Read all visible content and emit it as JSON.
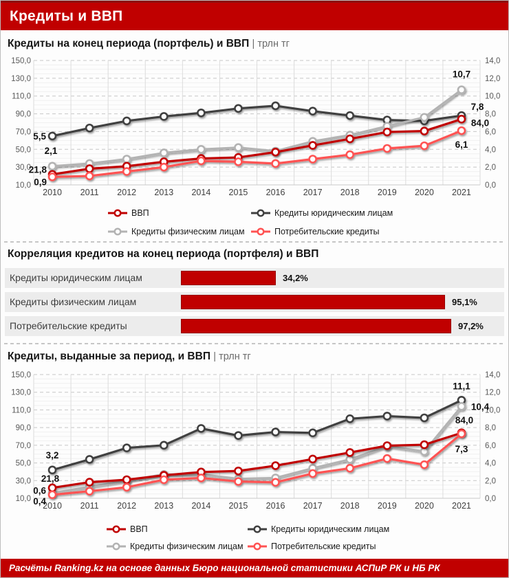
{
  "header": {
    "title": "Кредиты и ВВП"
  },
  "footer": {
    "text": "Расчёты Ranking.kz на основе данных Бюро национальной статистики АСПиР РК и НБ РК"
  },
  "colors": {
    "accent_red": "#c00000",
    "corporate_line": "#404040",
    "retail_line": "#b3b3b3",
    "consumer_line": "#ff5252",
    "row_stripe": "#ececec"
  },
  "chart_data": [
    {
      "type": "line",
      "title": "Кредиты на конец периода (портфель) и ВВП",
      "units": "| трлн тг",
      "x": [
        "2010",
        "2011",
        "2012",
        "2013",
        "2014",
        "2015",
        "2016",
        "2017",
        "2018",
        "2019",
        "2020",
        "2021"
      ],
      "left_axis": {
        "min": 10,
        "max": 150,
        "ticks": [
          "150,0",
          "130,0",
          "110,0",
          "90,0",
          "70,0",
          "50,0",
          "30,0",
          "10,0"
        ]
      },
      "right_axis": {
        "min": 0,
        "max": 14,
        "ticks": [
          "14,0",
          "12,0",
          "10,0",
          "8,0",
          "6,0",
          "4,0",
          "2,0",
          "0,0"
        ]
      },
      "grid": true,
      "legend_position": "bottom",
      "series": [
        {
          "name": "ВВП",
          "axis": "left",
          "color": "#c00000",
          "values": [
            21.8,
            28.2,
            31.0,
            36.0,
            39.7,
            40.9,
            46.9,
            54.4,
            61.8,
            69.5,
            70.6,
            84.0
          ],
          "start_label": "21,8",
          "end_label": "84,0"
        },
        {
          "name": "Кредиты юридическим лицам",
          "axis": "right",
          "color": "#404040",
          "values": [
            5.5,
            6.4,
            7.2,
            7.7,
            8.1,
            8.6,
            8.9,
            8.3,
            7.8,
            7.3,
            7.2,
            7.8
          ],
          "start_label": "5,5",
          "end_label": "7,8"
        },
        {
          "name": "Кредиты физическим лицам",
          "axis": "right",
          "color": "#b3b3b3",
          "values": [
            2.1,
            2.4,
            2.9,
            3.6,
            4.0,
            4.2,
            3.8,
            4.9,
            5.6,
            6.6,
            7.6,
            10.7
          ],
          "start_label": "2,1",
          "end_label": "10,7"
        },
        {
          "name": "Потребительские кредиты",
          "axis": "right",
          "color": "#ff5252",
          "values": [
            0.9,
            1.0,
            1.5,
            2.0,
            2.7,
            2.6,
            2.4,
            2.9,
            3.4,
            4.1,
            4.4,
            6.1
          ],
          "start_label": "0,9",
          "end_label": "6,1"
        }
      ]
    },
    {
      "type": "bar",
      "title": "Корреляция кредитов на конец периода (портфеля) и ВВП",
      "orientation": "horizontal",
      "categories": [
        "Кредиты юридическим лицам",
        "Кредиты физическим лицам",
        "Потребительские кредиты"
      ],
      "values": [
        34.2,
        95.1,
        97.2
      ],
      "labels": [
        "34,2%",
        "95,1%",
        "97,2%"
      ],
      "xlim": [
        0,
        100
      ],
      "bar_color": "#c00000"
    },
    {
      "type": "line",
      "title": "Кредиты, выданные за период, и ВВП",
      "units": "| трлн тг",
      "x": [
        "2010",
        "2011",
        "2012",
        "2013",
        "2014",
        "2015",
        "2016",
        "2017",
        "2018",
        "2019",
        "2020",
        "2021"
      ],
      "left_axis": {
        "min": 10,
        "max": 150,
        "ticks": [
          "150,0",
          "130,0",
          "110,0",
          "90,0",
          "70,0",
          "50,0",
          "30,0",
          "10,0"
        ]
      },
      "right_axis": {
        "min": 0,
        "max": 14,
        "ticks": [
          "14,0",
          "12,0",
          "10,0",
          "8,0",
          "6,0",
          "4,0",
          "2,0",
          "0,0"
        ]
      },
      "grid": true,
      "legend_position": "bottom",
      "series": [
        {
          "name": "ВВП",
          "axis": "left",
          "color": "#c00000",
          "values": [
            21.8,
            28.2,
            31.0,
            36.0,
            39.7,
            40.9,
            46.9,
            54.4,
            61.8,
            69.5,
            70.6,
            84.0
          ],
          "start_label": "21,8",
          "end_label": "84,0"
        },
        {
          "name": "Кредиты юридическим лицам",
          "axis": "right",
          "color": "#404040",
          "values": [
            3.2,
            4.4,
            5.7,
            6.0,
            7.9,
            7.1,
            7.5,
            7.4,
            9.0,
            9.3,
            9.1,
            11.1
          ],
          "start_label": "3,2",
          "end_label": "11,1"
        },
        {
          "name": "Кредиты физическим лицам",
          "axis": "right",
          "color": "#b3b3b3",
          "values": [
            0.6,
            1.3,
            2.0,
            2.7,
            2.7,
            2.2,
            2.3,
            3.4,
            4.4,
            5.9,
            5.3,
            10.4
          ],
          "start_label": "0,6",
          "end_label": "10,4"
        },
        {
          "name": "Потребительские кредиты",
          "axis": "right",
          "color": "#ff5252",
          "values": [
            0.4,
            0.8,
            1.25,
            2.1,
            2.3,
            1.9,
            1.8,
            2.8,
            3.4,
            4.5,
            3.8,
            7.3
          ],
          "start_label": "0,4",
          "end_label": "7,3"
        }
      ]
    }
  ]
}
